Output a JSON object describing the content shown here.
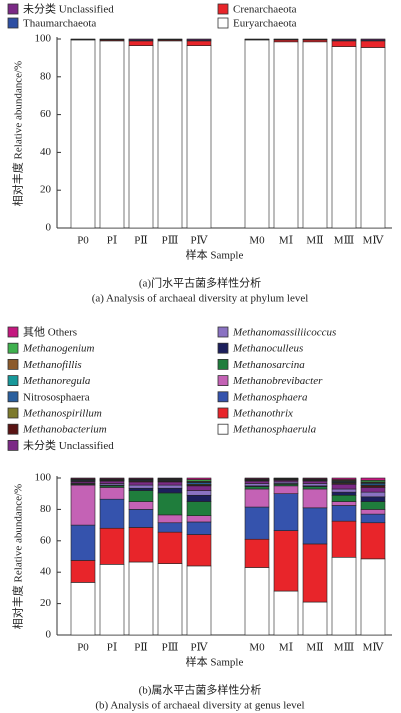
{
  "chart_data": [
    {
      "type": "bar",
      "stacked": true,
      "title": "(a)门水平古菌多样性分析",
      "subtitle": "(a) Analysis of archaeal diversity at phylum level",
      "x_label": "样本 Sample",
      "y_label": "相对丰度 Relative abundance/%",
      "categories": [
        "P0",
        "PⅠ",
        "PⅡ",
        "PⅢ",
        "PⅣ",
        "M0",
        "MⅠ",
        "MⅡ",
        "MⅢ",
        "MⅣ"
      ],
      "ylim": [
        0,
        100
      ],
      "yticks": [
        0,
        20,
        40,
        60,
        80,
        100
      ],
      "series": [
        {
          "name": "Euryarchaeota",
          "color": "#ffffff",
          "values": [
            99.5,
            99,
            96.5,
            99,
            96.5,
            99.5,
            98.5,
            98.5,
            96,
            95.5
          ]
        },
        {
          "name": "Crenarchaeota",
          "color": "#e8252a",
          "values": [
            0.2,
            0.5,
            2.5,
            0.5,
            2.5,
            0.2,
            1,
            1,
            3,
            3.5
          ]
        },
        {
          "name": "Thaumarchaeota",
          "color": "#2e4fa3",
          "values": [
            0.1,
            0.3,
            0.5,
            0.3,
            0.5,
            0.1,
            0.3,
            0.3,
            0.5,
            0.5
          ]
        },
        {
          "name": "未分类 Unclassified",
          "color": "#7b2a86",
          "values": [
            0.2,
            0.2,
            0.5,
            0.2,
            0.5,
            0.2,
            0.2,
            0.2,
            0.5,
            0.5
          ]
        }
      ]
    },
    {
      "type": "bar",
      "stacked": true,
      "title": "(b)属水平古菌多样性分析",
      "subtitle": "(b) Analysis of archaeal diversity at genus level",
      "x_label": "样本 Sample",
      "y_label": "相对丰度 Relative abundance/%",
      "categories": [
        "P0",
        "PⅠ",
        "PⅡ",
        "PⅢ",
        "PⅣ",
        "M0",
        "MⅠ",
        "MⅡ",
        "MⅢ",
        "MⅣ"
      ],
      "ylim": [
        0,
        100
      ],
      "yticks": [
        0,
        20,
        40,
        60,
        80,
        100
      ],
      "series": [
        {
          "name": "Methanosphaerula",
          "color": "#ffffff",
          "values": [
            33.5,
            45,
            46.5,
            45.5,
            44,
            43,
            28,
            21,
            49.5,
            48.5
          ]
        },
        {
          "name": "Methanothrix",
          "color": "#e8252a",
          "values": [
            14,
            23,
            22,
            20,
            20,
            18,
            38.5,
            37,
            23,
            23
          ]
        },
        {
          "name": "Methanosphaera",
          "color": "#3553ad",
          "values": [
            22.5,
            18.5,
            11.5,
            6,
            8,
            20.5,
            23.5,
            23,
            10,
            5.5
          ]
        },
        {
          "name": "Methanobrevibacter",
          "color": "#c462b5",
          "values": [
            25.5,
            7.5,
            5,
            5,
            4,
            11.5,
            5,
            12,
            2.5,
            3
          ]
        },
        {
          "name": "Methanosarcina",
          "color": "#1f7d3c",
          "values": [
            0.5,
            1,
            7,
            14,
            9,
            1.5,
            1,
            1.5,
            4,
            5
          ]
        },
        {
          "name": "Methanoculleus",
          "color": "#1c1f5c",
          "values": [
            0.3,
            0.5,
            1.5,
            3,
            4,
            0.5,
            0.5,
            0.5,
            2,
            3
          ]
        },
        {
          "name": "Methanomassiliicoccus",
          "color": "#8a72c2",
          "values": [
            0.5,
            1,
            2,
            2,
            3,
            1.5,
            1,
            1.5,
            2,
            3
          ]
        },
        {
          "name": "未分类 Unclassified",
          "color": "#7b2a86",
          "values": [
            1,
            1.5,
            2,
            2,
            3,
            1.5,
            1,
            1.5,
            3,
            3
          ]
        },
        {
          "name": "Methanobacterium",
          "color": "#5a1414",
          "values": [
            0.3,
            0.3,
            0.5,
            0.4,
            0.5,
            0.3,
            0.2,
            0.3,
            0.5,
            1
          ]
        },
        {
          "name": "Methanospirillum",
          "color": "#7d7a2c",
          "values": [
            0.2,
            0.2,
            0.3,
            0.3,
            0.5,
            0.2,
            0.2,
            0.2,
            0.5,
            0.5
          ]
        },
        {
          "name": "Nitrososphaera",
          "color": "#2a5f9e",
          "values": [
            0.5,
            0.3,
            0.5,
            0.5,
            1,
            0.3,
            0.2,
            0.3,
            0.5,
            1
          ]
        },
        {
          "name": "Methanoregula",
          "color": "#17989a",
          "values": [
            0.2,
            0.2,
            0.3,
            0.3,
            0.5,
            0.2,
            0.2,
            0.2,
            0.5,
            0.5
          ]
        },
        {
          "name": "Methanofillis",
          "color": "#8c5a2b",
          "values": [
            0.2,
            0.2,
            0.3,
            0.3,
            0.5,
            0.2,
            0.2,
            0.2,
            0.5,
            0.5
          ]
        },
        {
          "name": "Methanogenium",
          "color": "#3fb14e",
          "values": [
            0.3,
            0.3,
            0.1,
            0.3,
            1,
            0.3,
            0.2,
            0.3,
            0.5,
            1
          ]
        },
        {
          "name": "其他 Others",
          "color": "#c4187f",
          "values": [
            0.5,
            0.5,
            0.5,
            0.4,
            1,
            0.5,
            0.3,
            0.5,
            1,
            1.5
          ]
        }
      ]
    }
  ]
}
